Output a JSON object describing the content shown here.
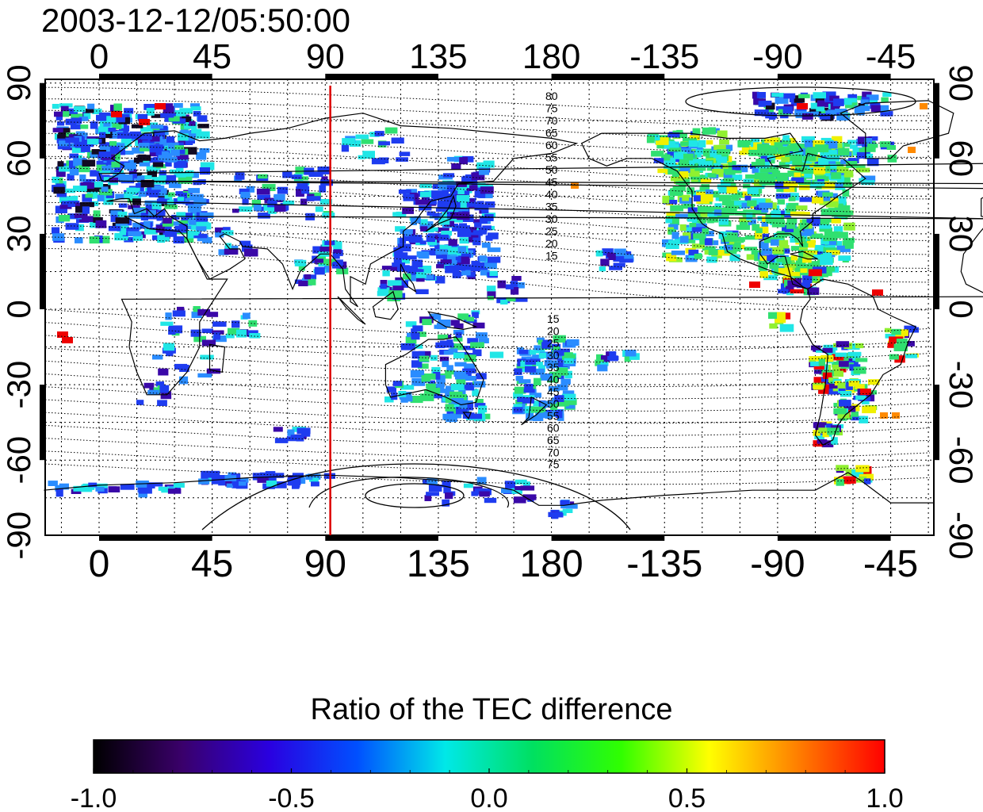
{
  "title": "2003-12-12/05:50:00",
  "axes": {
    "lon_ticks": [
      "0",
      "45",
      "90",
      "135",
      "180",
      "-135",
      "-90",
      "-45"
    ],
    "lat_ticks": [
      "90",
      "60",
      "30",
      "0",
      "-30",
      "-60",
      "-90"
    ]
  },
  "contour_labels": {
    "north": [
      "80",
      "75",
      "70",
      "65",
      "60",
      "55",
      "50",
      "45",
      "40",
      "35",
      "30",
      "25",
      "20",
      "15"
    ],
    "south": [
      "15",
      "20",
      "25",
      "30",
      "35",
      "40",
      "45",
      "50",
      "55",
      "60",
      "65",
      "70",
      "75"
    ]
  },
  "marker_line": {
    "longitude": 92,
    "color": "#dd0000"
  },
  "colorbar": {
    "title": "Ratio of the TEC difference",
    "ticks": [
      "-1.0",
      "-0.5",
      "0.0",
      "0.5",
      "1.0"
    ],
    "colormap": [
      "#000000",
      "#3a006a",
      "#2a00e0",
      "#0050ff",
      "#00e8e8",
      "#00e060",
      "#30ff00",
      "#ffff00",
      "#ff8000",
      "#ff0000"
    ]
  },
  "data_colors": {
    "dark": "#120a22",
    "purple": "#3a08a8",
    "blue": "#1e3cf0",
    "lightblue": "#2a8cff",
    "cyan": "#20e6e6",
    "green": "#30e070",
    "lime": "#90f030",
    "yellow": "#f0f000",
    "orange": "#ff8a00",
    "red": "#ee0000"
  }
}
